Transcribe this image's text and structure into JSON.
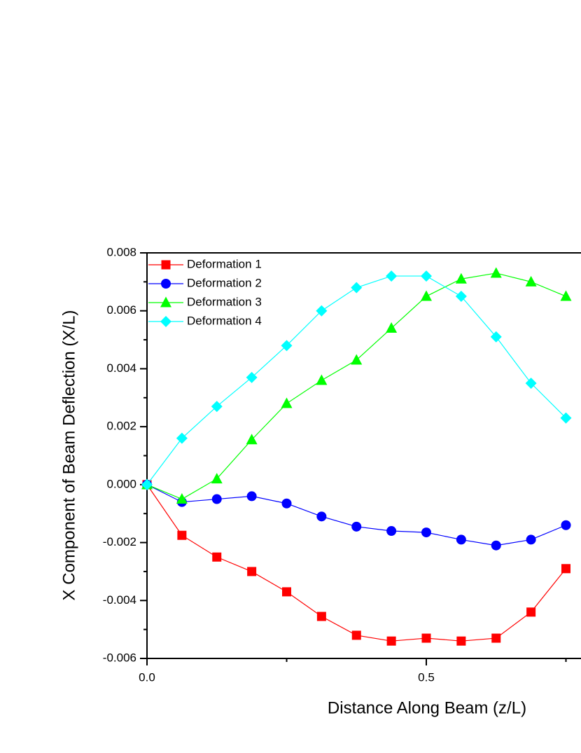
{
  "chart_data": {
    "type": "line",
    "xlabel": "Distance Along Beam (z/L)",
    "ylabel": "X Component of Beam Deflection (X/L)",
    "x": [
      0,
      0.0625,
      0.125,
      0.1875,
      0.25,
      0.3125,
      0.375,
      0.4375,
      0.5,
      0.5625,
      0.625,
      0.6875,
      0.75
    ],
    "series": [
      {
        "name": "Deformation 1",
        "color": "#ff0000",
        "marker": "square",
        "values": [
          0,
          -0.00175,
          -0.0025,
          -0.003,
          -0.0037,
          -0.00455,
          -0.0052,
          -0.0054,
          -0.0053,
          -0.0054,
          -0.0053,
          -0.0044,
          -0.0029
        ]
      },
      {
        "name": "Deformation 2",
        "color": "#0000ff",
        "marker": "circle",
        "values": [
          0,
          -0.0006,
          -0.0005,
          -0.0004,
          -0.00065,
          -0.0011,
          -0.00145,
          -0.0016,
          -0.00165,
          -0.0019,
          -0.0021,
          -0.0019,
          -0.0014
        ]
      },
      {
        "name": "Deformation 3",
        "color": "#00ff00",
        "marker": "triangle",
        "values": [
          0,
          -0.0005,
          0.0002,
          0.00155,
          0.0028,
          0.0036,
          0.0043,
          0.0054,
          0.0065,
          0.0071,
          0.0073,
          0.007,
          0.0065
        ]
      },
      {
        "name": "Deformation 4",
        "color": "#00ffff",
        "marker": "diamond",
        "values": [
          0,
          0.0016,
          0.0027,
          0.0037,
          0.0048,
          0.006,
          0.0068,
          0.0072,
          0.0072,
          0.0065,
          0.0051,
          0.0035,
          0.0023
        ]
      }
    ],
    "xlim": [
      0,
      1
    ],
    "xticks": [
      {
        "value": 0,
        "label": "0.0"
      },
      0.5
    ],
    "xminor_ticks": [
      0.25,
      0.75
    ],
    "ylim": [
      -0.006,
      0.008
    ],
    "yticks": [
      -0.006,
      -0.004,
      -0.002,
      {
        "value": 0,
        "label": "0.000"
      },
      0.002,
      0.004,
      0.006,
      0.008
    ],
    "yminor_ticks": [
      -0.005,
      -0.003,
      -0.001,
      0.001,
      0.003,
      0.005,
      0.007
    ],
    "legend": "upper left",
    "grid": false
  }
}
